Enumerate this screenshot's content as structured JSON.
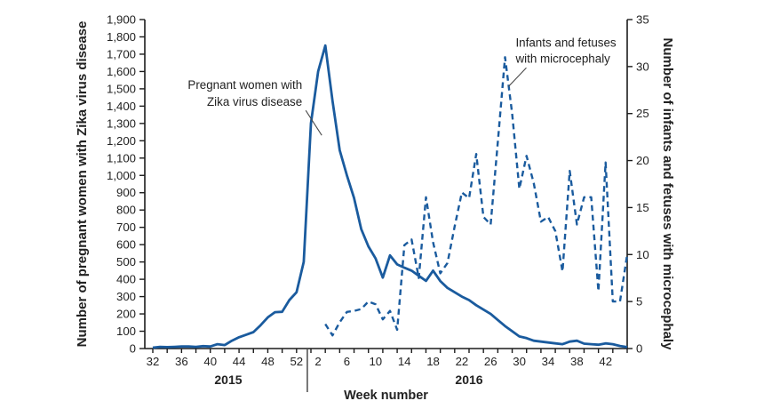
{
  "figure": {
    "background": "#ffffff",
    "line_color": "#1a5b9e",
    "axis_color": "#1c1c1c",
    "text_color": "#222222",
    "leader_color": "#4a4a4a"
  },
  "chart_data": {
    "type": "line",
    "title": "",
    "x_axis": {
      "label": "Week number",
      "minor_tick_every_weeks": 2,
      "years": [
        {
          "name": "2015",
          "first_week": 32,
          "last_week": 53,
          "labeled_weeks": [
            32,
            36,
            40,
            44,
            48,
            52
          ]
        },
        {
          "name": "2016",
          "first_week": 1,
          "last_week": 45,
          "labeled_weeks": [
            2,
            6,
            10,
            14,
            18,
            22,
            26,
            30,
            34,
            38,
            42
          ]
        }
      ]
    },
    "left_axis": {
      "label": "Number of pregnant women with Zika virus disease",
      "min": 0,
      "max": 1900,
      "step": 100,
      "number_format": "comma"
    },
    "right_axis": {
      "label": "Number of infants and fetuses with microcephaly",
      "min": 0,
      "max": 35,
      "step": 5,
      "number_format": "plain"
    },
    "series": [
      {
        "name": "Pregnant women with Zika virus disease",
        "axis": "left",
        "line_style": "solid",
        "color": "#1a5b9e",
        "start": {
          "year": "2015",
          "week": 32
        },
        "values": [
          5,
          10,
          8,
          10,
          12,
          12,
          10,
          14,
          12,
          25,
          20,
          45,
          65,
          80,
          95,
          135,
          180,
          210,
          212,
          280,
          325,
          500,
          1300,
          1600,
          1750,
          1430,
          1145,
          1000,
          870,
          690,
          590,
          520,
          410,
          538,
          486,
          467,
          450,
          420,
          391,
          450,
          390,
          350,
          325,
          300,
          280,
          250,
          225,
          200,
          165,
          130,
          100,
          70,
          60,
          45,
          40,
          35,
          30,
          25,
          40,
          45,
          28,
          25,
          22,
          30,
          25,
          15,
          8
        ]
      },
      {
        "name": "Infants and fetuses with microcephaly",
        "axis": "right",
        "line_style": "dashed",
        "color": "#1a5b9e",
        "start": {
          "year": "2016",
          "week": 3
        },
        "values": [
          2.6,
          1.4,
          2.8,
          3.9,
          4.0,
          4.2,
          5.0,
          4.7,
          3.1,
          4.0,
          2.0,
          11.0,
          11.6,
          7.5,
          16.1,
          11.3,
          8.0,
          9.1,
          13.0,
          16.6,
          16.0,
          20.7,
          14.0,
          13.2,
          22.0,
          31.0,
          25.0,
          17.0,
          20.5,
          17.6,
          13.5,
          14.0,
          12.5,
          8.2,
          18.9,
          13.2,
          16.1,
          16.1,
          6.1,
          19.8,
          5.0,
          5.0,
          10.0
        ]
      }
    ],
    "annotations": [
      {
        "id": "pregnant-women-callout",
        "lines": [
          "Pregnant women with",
          "Zika virus disease"
        ],
        "series_index": 0,
        "anchor": {
          "year": "2016",
          "week": 3
        }
      },
      {
        "id": "microcephaly-callout",
        "lines": [
          "Infants and fetuses",
          "with microcephaly"
        ],
        "series_index": 1,
        "anchor": {
          "year": "2016",
          "week": 28
        }
      }
    ]
  }
}
